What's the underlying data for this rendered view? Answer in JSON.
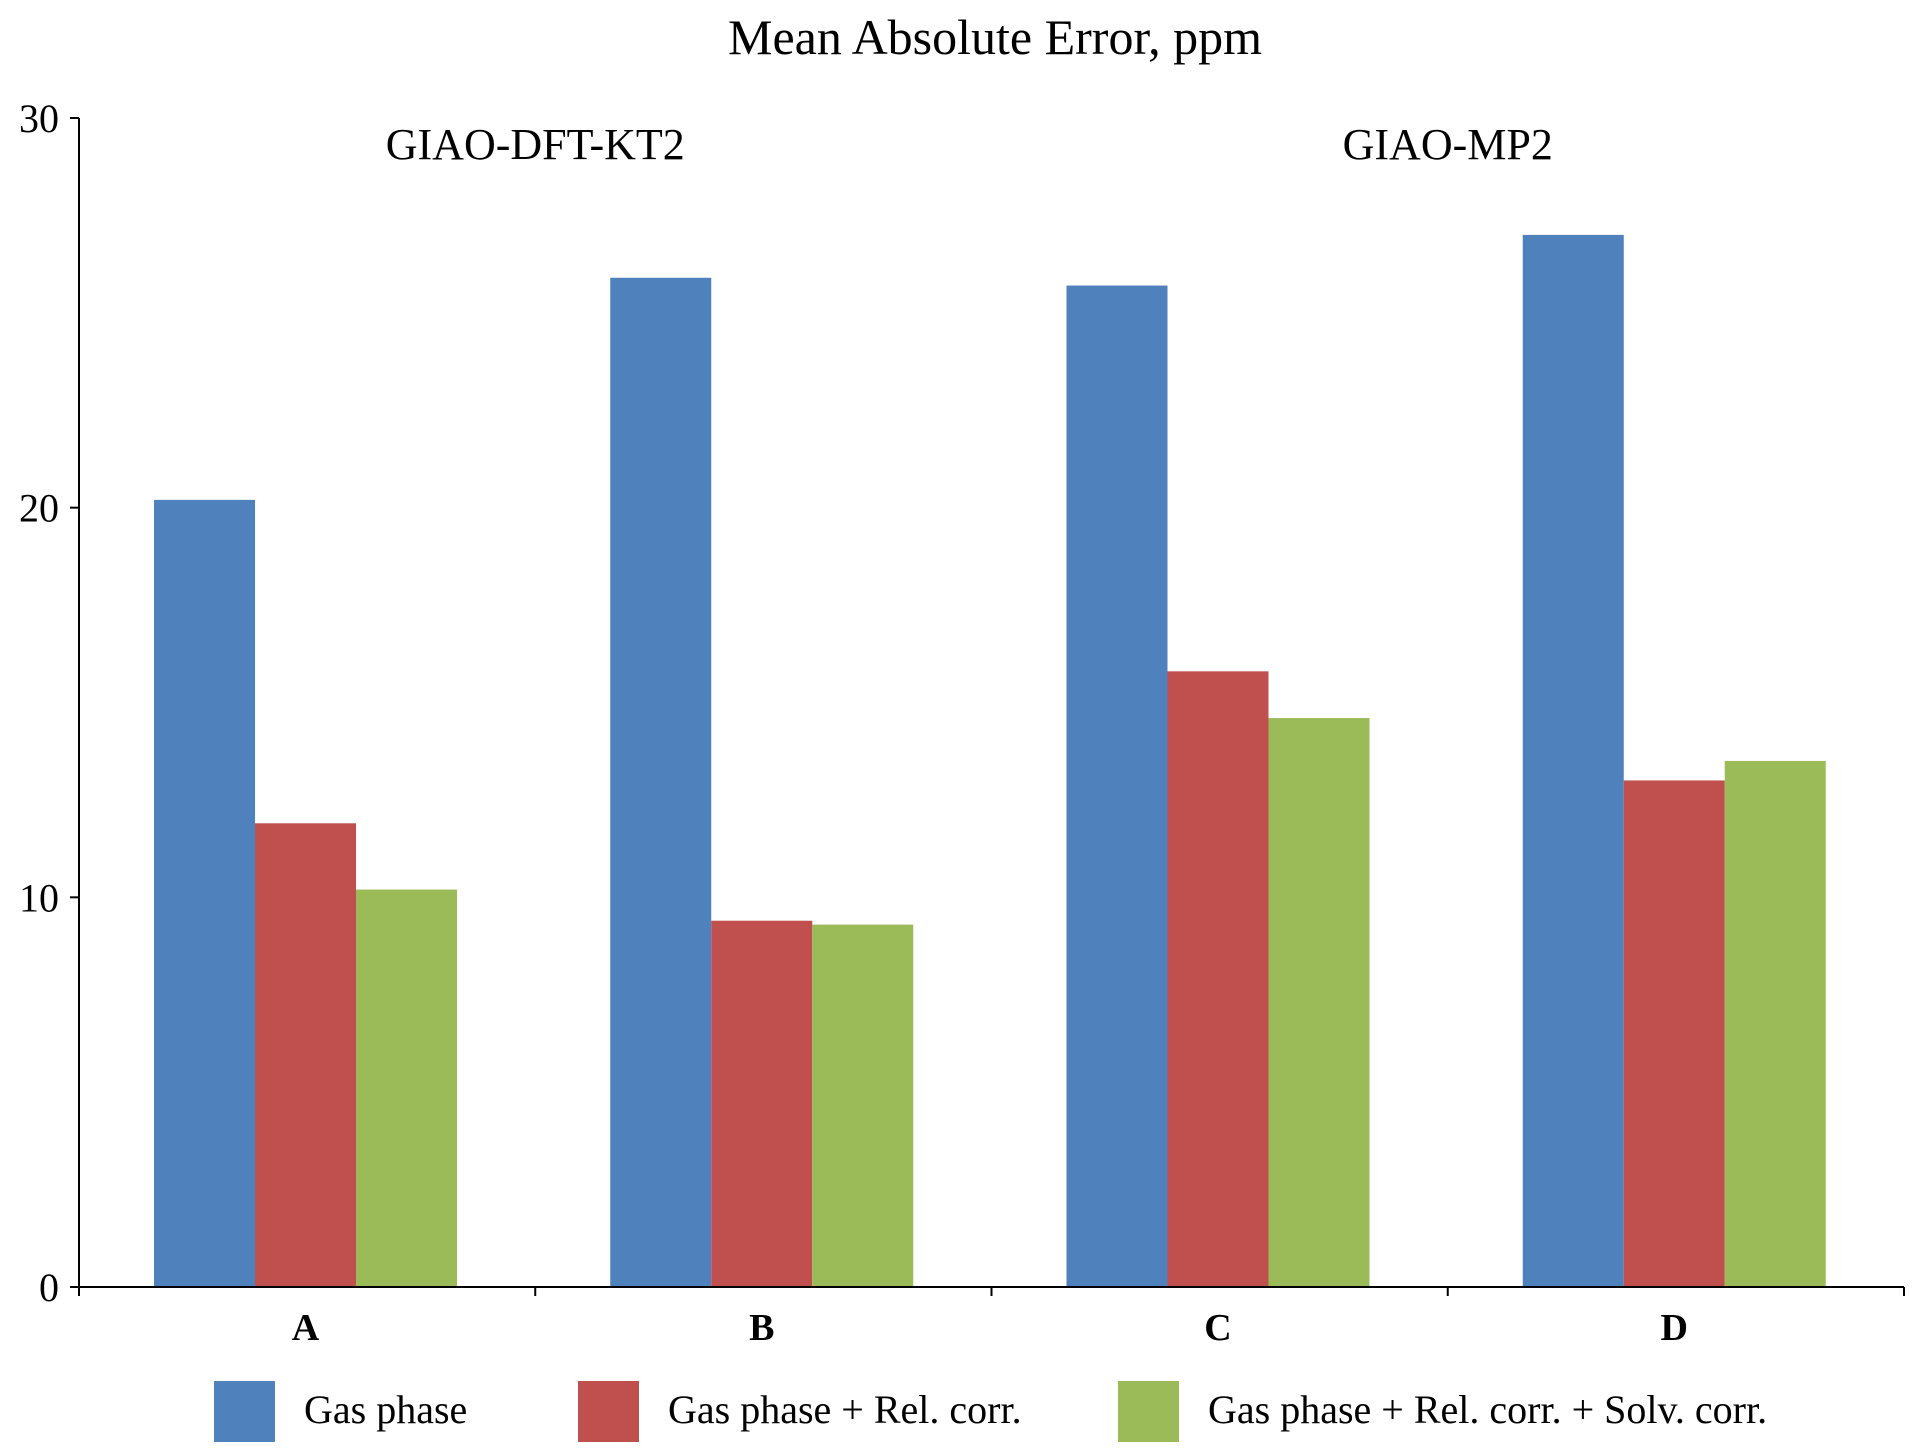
{
  "chart_data": {
    "type": "bar",
    "title": "Mean Absolute Error, ppm",
    "xlabel": "",
    "ylabel": "",
    "ylim": [
      0,
      30
    ],
    "yticks": [
      0,
      10,
      20,
      30
    ],
    "categories": [
      "A",
      "B",
      "C",
      "D"
    ],
    "group_labels": [
      {
        "label": "GIAO-DFT-KT2",
        "categories": [
          "A",
          "B"
        ]
      },
      {
        "label": "GIAO-MP2",
        "categories": [
          "C",
          "D"
        ]
      }
    ],
    "series": [
      {
        "name": "Gas phase",
        "color": "#4F81BD",
        "values": [
          20.2,
          25.9,
          25.7,
          27.0
        ]
      },
      {
        "name": "Gas phase + Rel. corr.",
        "color": "#C0504D",
        "values": [
          11.9,
          9.4,
          15.8,
          13.0
        ]
      },
      {
        "name": "Gas phase + Rel. corr. + Solv. corr.",
        "color": "#9BBB59",
        "values": [
          10.2,
          9.3,
          14.6,
          13.5
        ]
      }
    ],
    "grid": false,
    "legend_position": "bottom"
  }
}
